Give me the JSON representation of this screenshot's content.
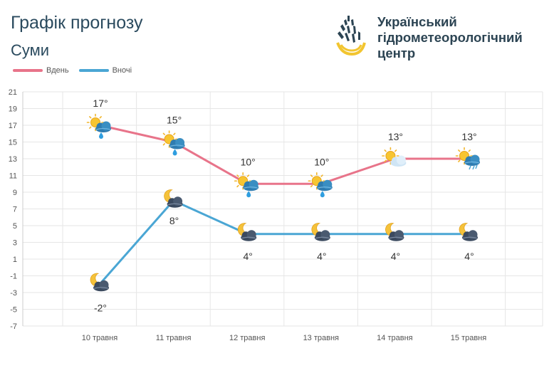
{
  "header": {
    "title": "Графік прогнозу",
    "city": "Суми"
  },
  "logo": {
    "line1": "Український",
    "line2": "гідрометеорологічний",
    "line3": "центр"
  },
  "legend": {
    "day": "Вдень",
    "night": "Вночі"
  },
  "colors": {
    "day": "#e8748a",
    "night": "#4aa6d4",
    "grid": "#e6e6e6",
    "text": "#333333"
  },
  "chart_data": {
    "type": "line",
    "categories": [
      "10 травня",
      "11 травня",
      "12 травня",
      "13 травня",
      "14 травня",
      "15 травня"
    ],
    "ylim": [
      -7,
      21
    ],
    "yticks": [
      21,
      19,
      17,
      15,
      13,
      11,
      9,
      7,
      5,
      3,
      1,
      -1,
      -3,
      -5,
      -7
    ],
    "series": [
      {
        "name": "Вдень",
        "values": [
          17,
          15,
          10,
          10,
          13,
          13
        ],
        "labels": [
          "17°",
          "15°",
          "10°",
          "10°",
          "13°",
          "13°"
        ],
        "icons": [
          "sun-cloud-rain-icon",
          "sun-cloud-rain-icon",
          "sun-cloud-rain-icon",
          "sun-cloud-rain-icon",
          "sun-cloud-icon",
          "sun-cloud-showers-icon"
        ]
      },
      {
        "name": "Вночі",
        "values": [
          -2,
          8,
          4,
          4,
          4,
          4
        ],
        "labels": [
          "-2°",
          "8°",
          "4°",
          "4°",
          "4°",
          "4°"
        ],
        "icons": [
          "moon-cloud-icon",
          "moon-cloud-icon",
          "moon-cloud-icon",
          "moon-cloud-icon",
          "moon-cloud-icon",
          "moon-cloud-icon"
        ]
      }
    ]
  }
}
